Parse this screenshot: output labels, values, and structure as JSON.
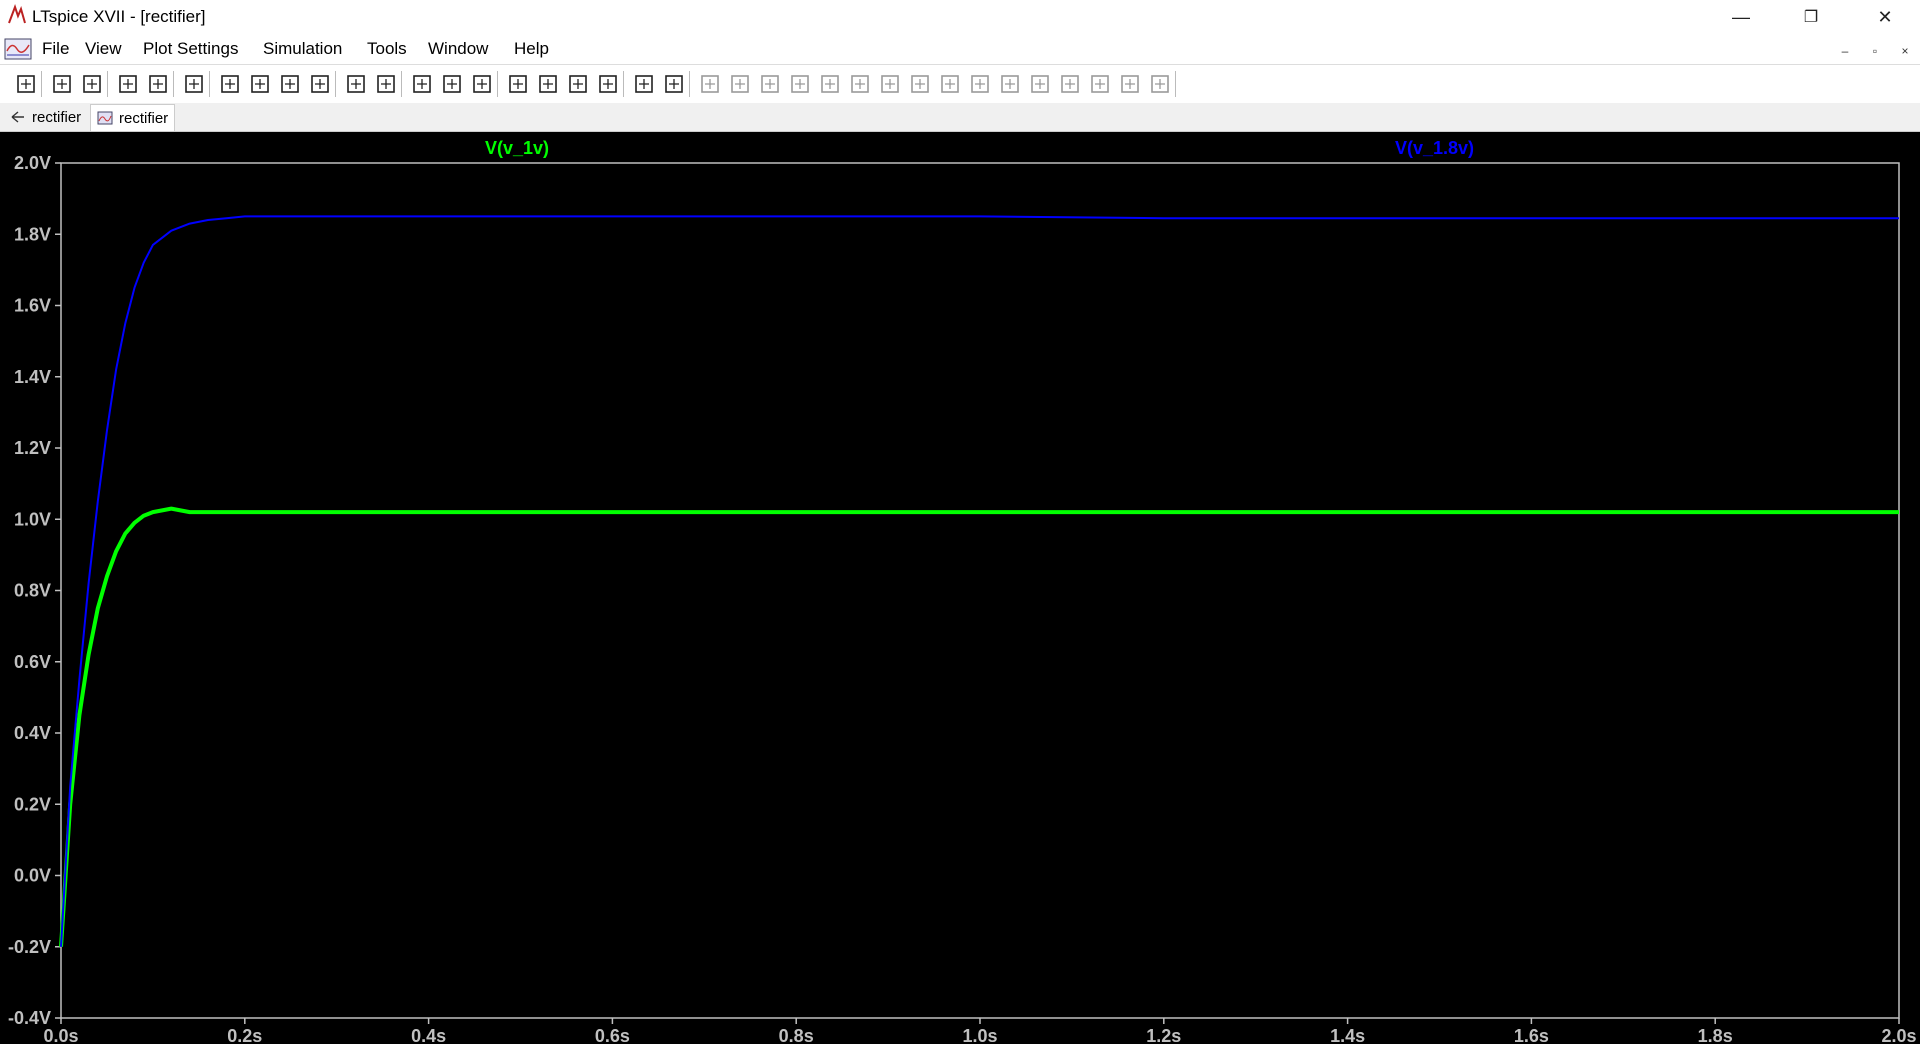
{
  "window": {
    "title": "LTspice XVII - [rectifier]",
    "controls": {
      "minimize": "—",
      "restore": "❐",
      "close": "✕"
    }
  },
  "menu": {
    "items": [
      {
        "label": "File"
      },
      {
        "label": "View"
      },
      {
        "label": "Plot Settings"
      },
      {
        "label": "Simulation"
      },
      {
        "label": "Tools"
      },
      {
        "label": "Window"
      },
      {
        "label": "Help"
      }
    ],
    "mdi_controls": {
      "minimize": "–",
      "restore": "▫",
      "close": "×"
    }
  },
  "toolbar": {
    "icons": [
      "new-schematic-icon",
      "open-icon",
      "save-icon",
      "control-panel-icon",
      "run-icon",
      "halt-icon",
      "zoom-in-icon",
      "zoom-area-icon",
      "zoom-out-icon",
      "zoom-cancel-icon",
      "autorange-icon",
      "mark-unused-icon",
      "tile-vertically-icon",
      "cascade-icon",
      "tile-horizontally-icon",
      "cut-icon",
      "copy-icon",
      "paste-icon",
      "find-icon",
      "print-icon",
      "print-setup-icon",
      "wire-icon",
      "ground-icon",
      "label-net-icon",
      "resistor-icon",
      "capacitor-icon",
      "inductor-icon",
      "diode-icon",
      "component-icon",
      "move-icon",
      "drag-icon",
      "undo-icon",
      "redo-icon",
      "rotate-icon",
      "mirror-icon",
      "text-icon",
      "spice-directive-icon"
    ]
  },
  "tabs": [
    {
      "label": "rectifier",
      "icon": "schematic-icon"
    },
    {
      "label": "rectifier",
      "icon": "waveform-icon",
      "active": true
    }
  ],
  "colors": {
    "background": "#000000",
    "axis": "#c0c0c0",
    "trace_1v": "#00ff00",
    "trace_1_8v": "#0000ff"
  },
  "chart_data": {
    "type": "line",
    "x": [
      0,
      0.01,
      0.02,
      0.03,
      0.04,
      0.05,
      0.06,
      0.07,
      0.08,
      0.09,
      0.1,
      0.12,
      0.14,
      0.16,
      0.18,
      0.2,
      0.25,
      0.3,
      0.4,
      0.6,
      0.8,
      1.0,
      1.2,
      1.4,
      1.6,
      1.8,
      2.0
    ],
    "series": [
      {
        "name": "V(v_1v)",
        "color": "#00ff00",
        "values": [
          -0.2,
          0.2,
          0.45,
          0.62,
          0.75,
          0.84,
          0.91,
          0.96,
          0.99,
          1.01,
          1.02,
          1.03,
          1.02,
          1.02,
          1.02,
          1.02,
          1.02,
          1.02,
          1.02,
          1.02,
          1.02,
          1.02,
          1.02,
          1.02,
          1.02,
          1.02,
          1.02
        ]
      },
      {
        "name": "V(v_1.8v)",
        "color": "#0000ff",
        "values": [
          -0.2,
          0.25,
          0.55,
          0.82,
          1.05,
          1.25,
          1.42,
          1.55,
          1.65,
          1.72,
          1.77,
          1.81,
          1.83,
          1.84,
          1.845,
          1.85,
          1.85,
          1.85,
          1.85,
          1.85,
          1.85,
          1.85,
          1.845,
          1.845,
          1.845,
          1.845,
          1.845
        ]
      }
    ],
    "xlim": [
      0,
      2.0
    ],
    "ylim": [
      -0.4,
      2.0
    ],
    "x_ticks": [
      {
        "value": 0.0,
        "label": "0.0s"
      },
      {
        "value": 0.2,
        "label": "0.2s"
      },
      {
        "value": 0.4,
        "label": "0.4s"
      },
      {
        "value": 0.6,
        "label": "0.6s"
      },
      {
        "value": 0.8,
        "label": "0.8s"
      },
      {
        "value": 1.0,
        "label": "1.0s"
      },
      {
        "value": 1.2,
        "label": "1.2s"
      },
      {
        "value": 1.4,
        "label": "1.4s"
      },
      {
        "value": 1.6,
        "label": "1.6s"
      },
      {
        "value": 1.8,
        "label": "1.8s"
      },
      {
        "value": 2.0,
        "label": "2.0s"
      }
    ],
    "y_ticks": [
      {
        "value": 2.0,
        "label": "2.0V"
      },
      {
        "value": 1.8,
        "label": "1.8V"
      },
      {
        "value": 1.6,
        "label": "1.6V"
      },
      {
        "value": 1.4,
        "label": "1.4V"
      },
      {
        "value": 1.2,
        "label": "1.2V"
      },
      {
        "value": 1.0,
        "label": "1.0V"
      },
      {
        "value": 0.8,
        "label": "0.8V"
      },
      {
        "value": 0.6,
        "label": "0.6V"
      },
      {
        "value": 0.4,
        "label": "0.4V"
      },
      {
        "value": 0.2,
        "label": "0.2V"
      },
      {
        "value": 0.0,
        "label": "0.0V"
      },
      {
        "value": -0.2,
        "label": "-0.2V"
      },
      {
        "value": -0.4,
        "label": "-0.4V"
      }
    ],
    "grid": false
  }
}
